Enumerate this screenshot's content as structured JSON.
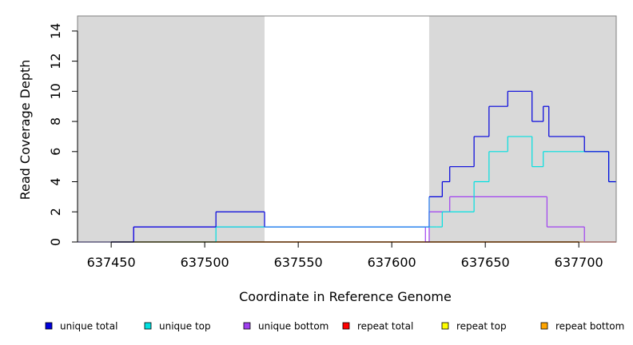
{
  "chart_data": {
    "type": "line",
    "step": true,
    "xlabel": "Coordinate in Reference Genome",
    "ylabel": "Read Coverage Depth",
    "xlim": [
      637432,
      637720
    ],
    "ylim": [
      0,
      15
    ],
    "x_ticks": [
      637450,
      637500,
      637550,
      637600,
      637650,
      637700
    ],
    "x_tick_labels": [
      "637450",
      "637500",
      "637550",
      "637600",
      "637650",
      "637700"
    ],
    "y_ticks": [
      0,
      2,
      4,
      6,
      8,
      10,
      12,
      14
    ],
    "y_tick_labels": [
      "0",
      "2",
      "4",
      "6",
      "8",
      "10",
      "12",
      "14"
    ],
    "shaded_regions": [
      [
        637432,
        637532
      ],
      [
        637620,
        637720
      ]
    ],
    "shade_color": "#d9d9d9",
    "legend_position": "bottom",
    "series": [
      {
        "name": "unique total",
        "color": "#0000dd",
        "x": [
          637432,
          637462,
          637506,
          637532,
          637618,
          637620,
          637627,
          637631,
          637644,
          637652,
          637662,
          637675,
          637679,
          637681,
          637684,
          637700,
          637703,
          637716,
          637720
        ],
        "y": [
          0,
          1,
          2,
          1,
          1,
          3,
          4,
          5,
          7,
          9,
          10,
          8,
          8,
          9,
          7,
          7,
          6,
          4,
          4
        ],
        "shade_split_color": "#1e78f0"
      },
      {
        "name": "unique top",
        "color": "#00e0e0",
        "x": [
          637432,
          637462,
          637506,
          637532,
          637618,
          637620,
          637624,
          637627,
          637631,
          637644,
          637652,
          637662,
          637675,
          637679,
          637681,
          637684,
          637700,
          637703,
          637716,
          637720
        ],
        "y": [
          0,
          0,
          1,
          1,
          1,
          1,
          1,
          2,
          2,
          4,
          6,
          7,
          5,
          5,
          6,
          6,
          6,
          6,
          4,
          4
        ]
      },
      {
        "name": "unique bottom",
        "color": "#a040f0",
        "x": [
          637432,
          637462,
          637532,
          637618,
          637620,
          637631,
          637683,
          637703,
          637720
        ],
        "y": [
          0,
          1,
          1,
          0,
          2,
          3,
          1,
          0,
          0
        ]
      },
      {
        "name": "repeat total",
        "color": "#ff0000",
        "x": [
          637432,
          637720
        ],
        "y": [
          0,
          0
        ]
      },
      {
        "name": "repeat top",
        "color": "#ffff00",
        "x": [
          637432,
          637720
        ],
        "y": [
          0,
          0
        ]
      },
      {
        "name": "repeat bottom",
        "color": "#ffa500",
        "x": [
          637432,
          637720
        ],
        "y": [
          0,
          0
        ]
      }
    ]
  }
}
